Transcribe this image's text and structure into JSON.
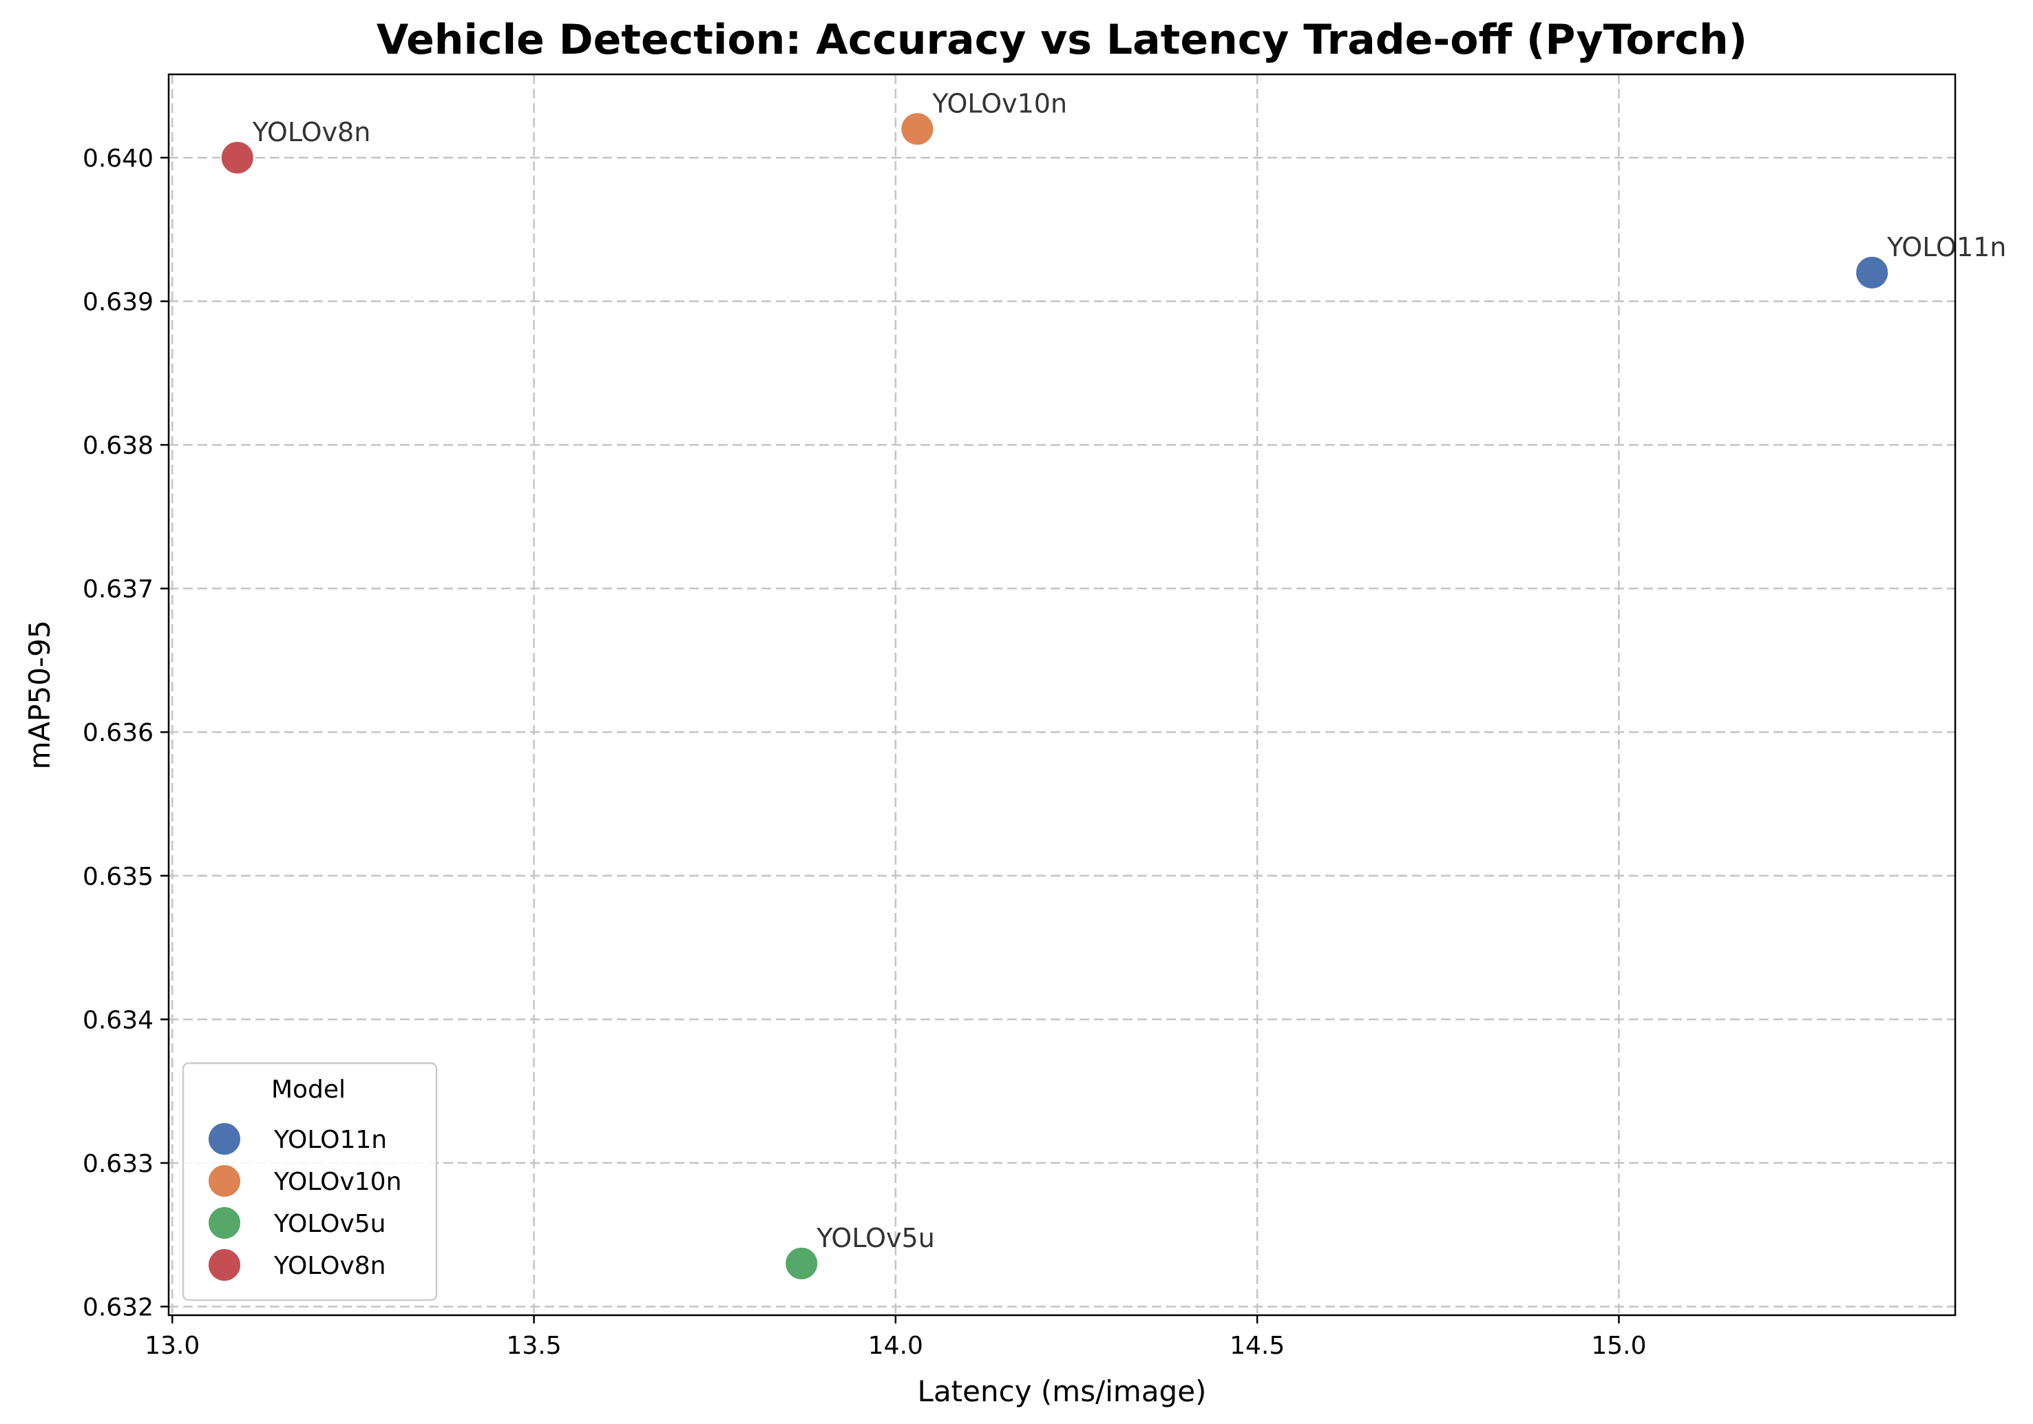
{
  "chart_data": {
    "type": "scatter",
    "title": "Vehicle Detection: Accuracy vs Latency Trade-off (PyTorch)",
    "xlabel": "Latency (ms/image)",
    "ylabel": "mAP50-95",
    "xlim": [
      12.995,
      15.465
    ],
    "ylim": [
      0.63194,
      0.64058
    ],
    "xticks": [
      13.0,
      13.5,
      14.0,
      14.5,
      15.0
    ],
    "xtick_labels": [
      "13.0",
      "13.5",
      "14.0",
      "14.5",
      "15.0"
    ],
    "yticks": [
      0.632,
      0.633,
      0.634,
      0.635,
      0.636,
      0.637,
      0.638,
      0.639,
      0.64
    ],
    "ytick_labels": [
      "0.632",
      "0.633",
      "0.634",
      "0.635",
      "0.636",
      "0.637",
      "0.638",
      "0.639",
      "0.640"
    ],
    "grid": true,
    "legend": {
      "title": "Model",
      "placement": "lower-left"
    },
    "series": [
      {
        "name": "YOLO11n",
        "color": "#4c72b0",
        "x": 15.35,
        "y": 0.6392
      },
      {
        "name": "YOLOv10n",
        "color": "#dd8452",
        "x": 14.03,
        "y": 0.6402
      },
      {
        "name": "YOLOv5u",
        "color": "#55a868",
        "x": 13.87,
        "y": 0.6323
      },
      {
        "name": "YOLOv8n",
        "color": "#c44e52",
        "x": 13.09,
        "y": 0.64
      }
    ]
  }
}
